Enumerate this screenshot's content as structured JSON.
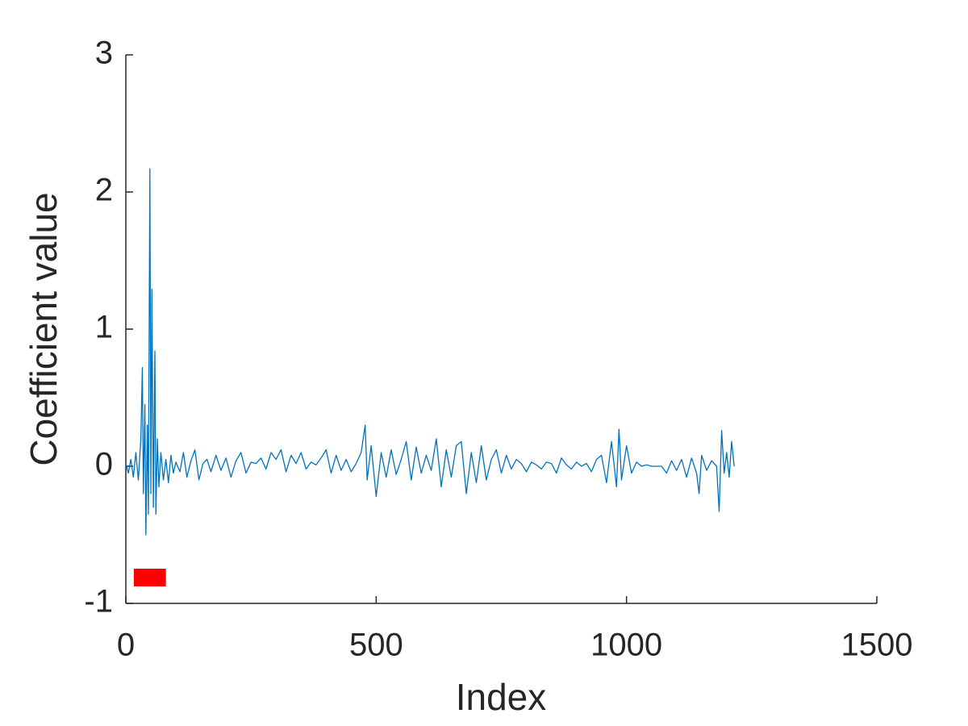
{
  "chart_data": {
    "type": "line",
    "xlabel": "Index",
    "ylabel": "Coefficient value",
    "xlim": [
      0,
      1500
    ],
    "xticks": [
      0,
      500,
      1000,
      1500
    ],
    "ylim": [
      -1,
      3
    ],
    "yticks": [
      -1,
      0,
      1,
      2,
      3
    ],
    "x": [
      0,
      5,
      10,
      15,
      20,
      25,
      30,
      33,
      35,
      38,
      40,
      43,
      45,
      48,
      50,
      52,
      55,
      58,
      60,
      63,
      66,
      70,
      75,
      80,
      85,
      90,
      95,
      100,
      108,
      115,
      122,
      130,
      138,
      146,
      154,
      162,
      170,
      180,
      190,
      200,
      210,
      220,
      230,
      240,
      250,
      260,
      270,
      280,
      290,
      300,
      310,
      320,
      330,
      340,
      350,
      360,
      370,
      380,
      390,
      400,
      410,
      420,
      430,
      440,
      450,
      460,
      470,
      478,
      482,
      490,
      500,
      510,
      520,
      530,
      540,
      550,
      560,
      570,
      580,
      590,
      600,
      610,
      620,
      630,
      640,
      650,
      660,
      670,
      680,
      690,
      700,
      710,
      720,
      730,
      740,
      750,
      760,
      770,
      780,
      790,
      800,
      810,
      820,
      830,
      840,
      850,
      860,
      870,
      880,
      890,
      900,
      910,
      920,
      930,
      940,
      950,
      960,
      970,
      980,
      985,
      990,
      1000,
      1010,
      1020,
      1030,
      1040,
      1050,
      1060,
      1070,
      1080,
      1090,
      1100,
      1110,
      1120,
      1130,
      1140,
      1145,
      1150,
      1160,
      1170,
      1180,
      1185,
      1190,
      1195,
      1200,
      1205,
      1210,
      1215
    ],
    "series": [
      {
        "color": "#0072bd",
        "values": [
          0.02,
          -0.05,
          0.05,
          -0.08,
          0.1,
          -0.1,
          0.2,
          0.72,
          -0.2,
          0.45,
          -0.5,
          0.3,
          -0.35,
          2.17,
          -0.2,
          1.29,
          -0.3,
          0.84,
          -0.35,
          0.2,
          -0.15,
          0.1,
          -0.1,
          0.05,
          -0.12,
          0.08,
          -0.05,
          0.03,
          -0.04,
          0.1,
          -0.08,
          0.04,
          0.12,
          -0.1,
          0.02,
          0.05,
          -0.04,
          0.08,
          -0.03,
          0.06,
          -0.08,
          0.04,
          0.1,
          -0.05,
          0.03,
          0.02,
          0.06,
          -0.02,
          0.1,
          0.05,
          0.12,
          -0.04,
          0.08,
          0.02,
          0.1,
          -0.02,
          0.03,
          0.01,
          0.06,
          0.12,
          -0.05,
          0.08,
          -0.03,
          0.05,
          -0.04,
          0.02,
          0.1,
          0.3,
          -0.1,
          0.15,
          -0.22,
          0.1,
          -0.08,
          0.12,
          -0.06,
          0.05,
          0.18,
          -0.1,
          0.14,
          -0.05,
          0.08,
          -0.03,
          0.2,
          -0.15,
          0.12,
          -0.08,
          0.15,
          0.18,
          -0.2,
          0.1,
          -0.12,
          0.15,
          -0.1,
          0.05,
          0.12,
          -0.05,
          0.08,
          -0.02,
          0.05,
          0.02,
          -0.04,
          0.03,
          0.01,
          -0.02,
          0.03,
          0.02,
          -0.05,
          0.06,
          0.01,
          -0.02,
          0.03,
          0,
          0.02,
          -0.04,
          0.05,
          0.08,
          -0.12,
          0.18,
          -0.15,
          0.27,
          -0.1,
          0.15,
          -0.05,
          0.03,
          0,
          0.01,
          0,
          0,
          0,
          -0.05,
          0.04,
          -0.03,
          0.05,
          -0.08,
          0.06,
          -0.05,
          -0.2,
          0.08,
          -0.03,
          0.04,
          0,
          -0.33,
          0.26,
          -0.05,
          0.1,
          -0.08,
          0.18,
          0
        ]
      }
    ],
    "highlight": {
      "x": [
        16,
        80
      ],
      "y": [
        -0.876,
        -0.747
      ],
      "color": "#ff0000"
    }
  }
}
